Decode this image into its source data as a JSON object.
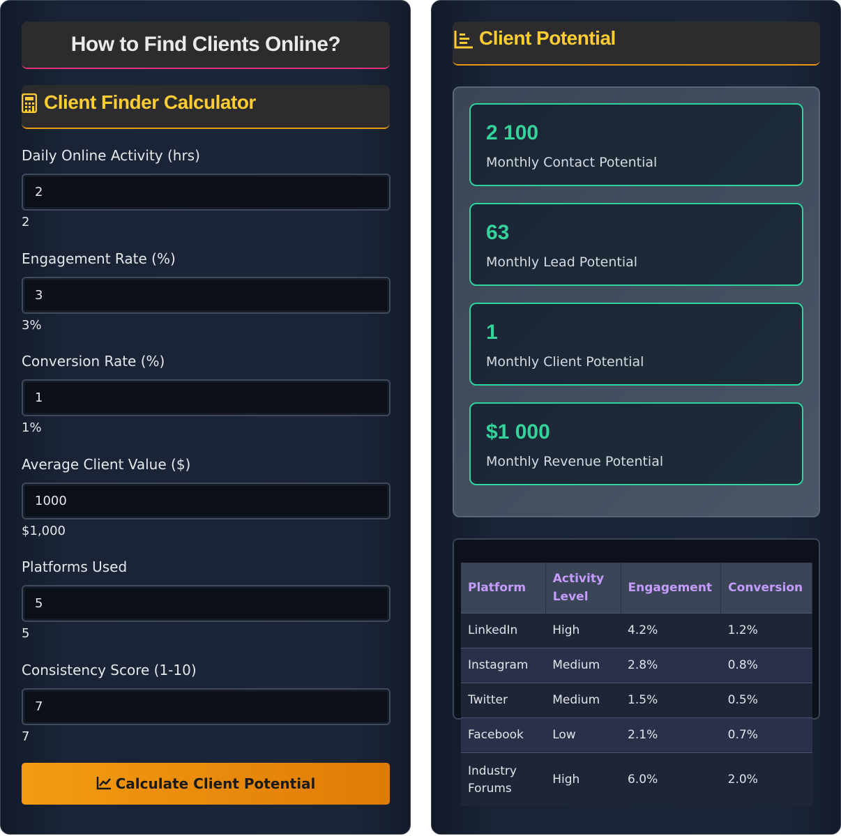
{
  "left": {
    "title": "How to Find Clients Online?",
    "calculator_title": "Client Finder Calculator",
    "fields": [
      {
        "label": "Daily Online Activity (hrs)",
        "input": "2",
        "display": "2"
      },
      {
        "label": "Engagement Rate (%)",
        "input": "3",
        "display": "3%"
      },
      {
        "label": "Conversion Rate (%)",
        "input": "1",
        "display": "1%"
      },
      {
        "label": "Average Client Value ($)",
        "input": "1000",
        "display": "$1,000"
      },
      {
        "label": "Platforms Used",
        "input": "5",
        "display": "5"
      },
      {
        "label": "Consistency Score (1-10)",
        "input": "7",
        "display": "7"
      }
    ],
    "button": "Calculate Client Potential"
  },
  "right": {
    "title": "Client Potential",
    "results": [
      {
        "value": "2 100",
        "label": "Monthly Contact Potential"
      },
      {
        "value": "63",
        "label": "Monthly Lead Potential"
      },
      {
        "value": "1",
        "label": "Monthly Client Potential"
      },
      {
        "value": "$1 000",
        "label": "Monthly Revenue Potential"
      }
    ],
    "table": {
      "headers": [
        "Platform",
        "Activity Level",
        "Engagement",
        "Conversion"
      ],
      "rows": [
        [
          "LinkedIn",
          "High",
          "4.2%",
          "1.2%"
        ],
        [
          "Instagram",
          "Medium",
          "2.8%",
          "0.8%"
        ],
        [
          "Twitter",
          "Medium",
          "1.5%",
          "0.5%"
        ],
        [
          "Facebook",
          "Low",
          "2.1%",
          "0.7%"
        ],
        [
          "Industry Forums",
          "High",
          "6.0%",
          "2.0%"
        ]
      ]
    }
  }
}
